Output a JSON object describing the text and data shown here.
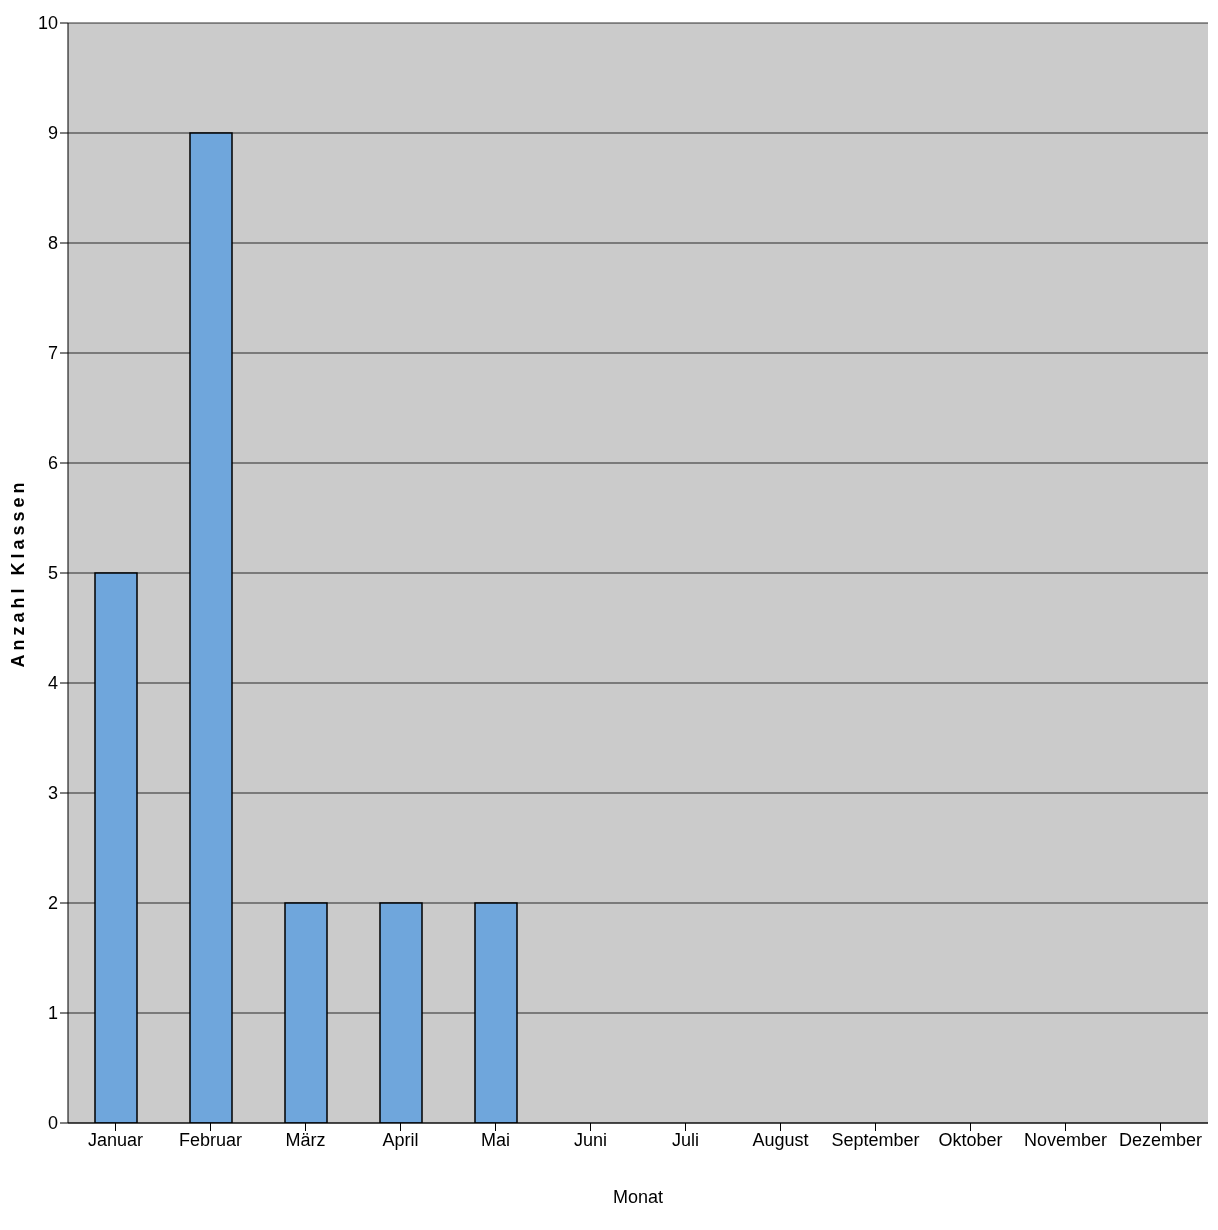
{
  "chart_data": {
    "type": "bar",
    "xlabel": "Monat",
    "ylabel": "Anzahl Klassen",
    "categories": [
      "Januar",
      "Februar",
      "März",
      "April",
      "Mai",
      "Juni",
      "Juli",
      "August",
      "September",
      "Oktober",
      "November",
      "Dezember"
    ],
    "values": [
      5,
      9,
      2,
      2,
      2,
      0,
      0,
      0,
      0,
      0,
      0,
      0
    ],
    "color": "#6fa6dc",
    "ylim": [
      0,
      10
    ],
    "yticks": [
      0,
      1,
      2,
      3,
      4,
      5,
      6,
      7,
      8,
      9,
      10
    ],
    "grid": "y"
  }
}
